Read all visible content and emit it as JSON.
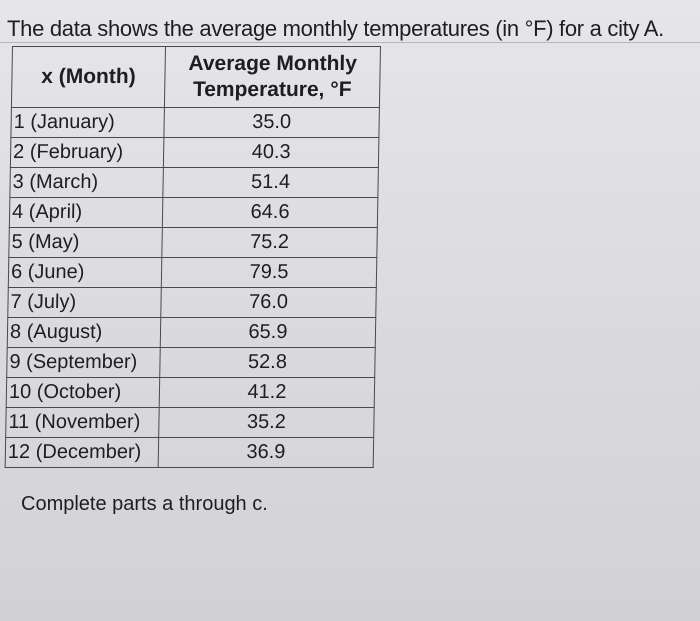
{
  "intro": "The data shows the average monthly temperatures (in °F) for a city A.",
  "table": {
    "headers": {
      "month": "x (Month)",
      "temp_line1": "Average Monthly",
      "temp_line2": "Temperature, °F"
    },
    "rows": [
      {
        "month": "1 (January)",
        "temp": "35.0"
      },
      {
        "month": "2 (February)",
        "temp": "40.3"
      },
      {
        "month": "3 (March)",
        "temp": "51.4"
      },
      {
        "month": "4 (April)",
        "temp": "64.6"
      },
      {
        "month": "5 (May)",
        "temp": "75.2"
      },
      {
        "month": "6 (June)",
        "temp": "79.5"
      },
      {
        "month": "7 (July)",
        "temp": "76.0"
      },
      {
        "month": "8 (August)",
        "temp": "65.9"
      },
      {
        "month": "9 (September)",
        "temp": "52.8"
      },
      {
        "month": "10 (October)",
        "temp": "41.2"
      },
      {
        "month": "11 (November)",
        "temp": "35.2"
      },
      {
        "month": "12 (December)",
        "temp": "36.9"
      }
    ]
  },
  "outro": "Complete parts a through c."
}
